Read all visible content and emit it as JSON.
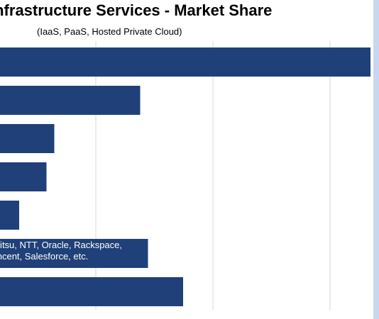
{
  "colors": {
    "bar": "#1f4079",
    "grid": "#d9d9d9",
    "accent_strip": "#c9d6ef"
  },
  "chart_data": {
    "type": "bar",
    "orientation": "horizontal",
    "title": "Infrastructure Services - Market Share",
    "subtitle": "(IaaS, PaaS, Hosted Private Cloud)",
    "xlim": [
      0,
      100
    ],
    "grid": true,
    "values": [
      96,
      37,
      15,
      13,
      6,
      39,
      48
    ],
    "annotations": [
      {
        "bar_index": 5,
        "lines": [
          "Fujitsu, NTT, Oracle, Rackspace,",
          "Tencent, Salesforce, etc."
        ]
      }
    ]
  }
}
